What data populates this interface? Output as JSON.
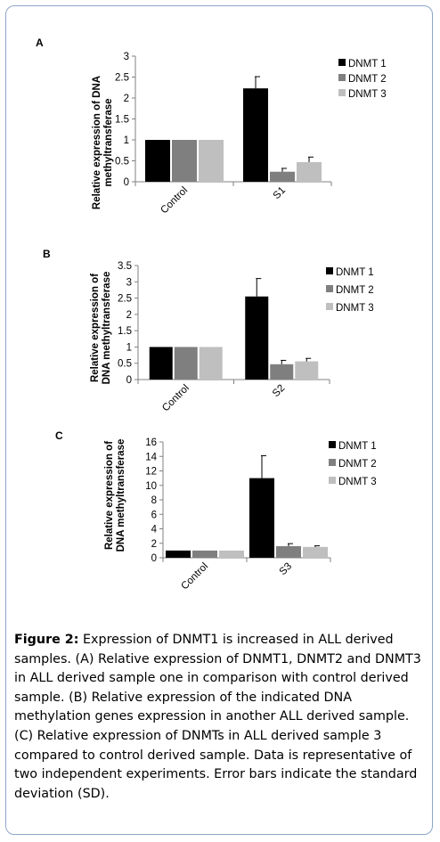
{
  "chart_data": [
    {
      "type": "bar",
      "panel_label": "A",
      "categories": [
        "Control",
        "S1"
      ],
      "series": [
        {
          "name": "DNMT 1",
          "values": [
            1.0,
            2.23
          ],
          "errors": [
            0,
            0.28
          ],
          "color": "#000000"
        },
        {
          "name": "DNMT 2",
          "values": [
            1.0,
            0.24
          ],
          "errors": [
            0,
            0.08
          ],
          "color": "#7f7f7f"
        },
        {
          "name": "DNMT 3",
          "values": [
            1.0,
            0.47
          ],
          "errors": [
            0,
            0.12
          ],
          "color": "#bfbfbf"
        }
      ],
      "ylabel": [
        "Relative expression of DNA",
        "methyltransferase"
      ],
      "yticks": [
        "0",
        "0.5",
        "1",
        "1.5",
        "2",
        "2.5",
        "3"
      ],
      "ylim": [
        0,
        3
      ],
      "legend": "top-right",
      "grid": false
    },
    {
      "type": "bar",
      "panel_label": "B",
      "categories": [
        "Control",
        "S2"
      ],
      "series": [
        {
          "name": "DNMT 1",
          "values": [
            1.0,
            2.55
          ],
          "errors": [
            0,
            0.55
          ],
          "color": "#000000"
        },
        {
          "name": "DNMT 2",
          "values": [
            1.0,
            0.47
          ],
          "errors": [
            0,
            0.12
          ],
          "color": "#7f7f7f"
        },
        {
          "name": "DNMT 3",
          "values": [
            1.0,
            0.56
          ],
          "errors": [
            0,
            0.09
          ],
          "color": "#bfbfbf"
        }
      ],
      "ylabel": [
        "Relative expression of",
        "DNA methyltransferase"
      ],
      "yticks": [
        "0",
        "0.5",
        "1",
        "1.5",
        "2",
        "2.5",
        "3",
        "3.5"
      ],
      "ylim": [
        0,
        3.5
      ],
      "legend": "top-right",
      "grid": false
    },
    {
      "type": "bar",
      "panel_label": "C",
      "categories": [
        "Control",
        "S3"
      ],
      "series": [
        {
          "name": "DNMT 1",
          "values": [
            1.0,
            11.0
          ],
          "errors": [
            0,
            3.1
          ],
          "color": "#000000"
        },
        {
          "name": "DNMT 2",
          "values": [
            1.0,
            1.6
          ],
          "errors": [
            0,
            0.35
          ],
          "color": "#7f7f7f"
        },
        {
          "name": "DNMT 3",
          "values": [
            1.0,
            1.5
          ],
          "errors": [
            0,
            0.15
          ],
          "color": "#bfbfbf"
        }
      ],
      "ylabel": [
        "Relative expression of",
        "DNA methyltransferase"
      ],
      "yticks": [
        "0",
        "2",
        "4",
        "6",
        "8",
        "10",
        "12",
        "14",
        "16"
      ],
      "ylim": [
        0,
        16
      ],
      "legend": "top-right",
      "grid": false
    }
  ],
  "caption": {
    "label": "Figure 2:",
    "text": " Expression of DNMT1 is increased in ALL derived samples. (A) Relative expression of DNMT1, DNMT2 and DNMT3 in ALL derived sample one in comparison with control derived sample. (B) Relative expression of the indicated DNA methylation genes expression in another ALL derived sample. (C) Relative expression of DNMTs in ALL derived sample 3 compared to control derived sample. Data is representative of two independent experiments. Error bars indicate the standard deviation (SD)."
  }
}
